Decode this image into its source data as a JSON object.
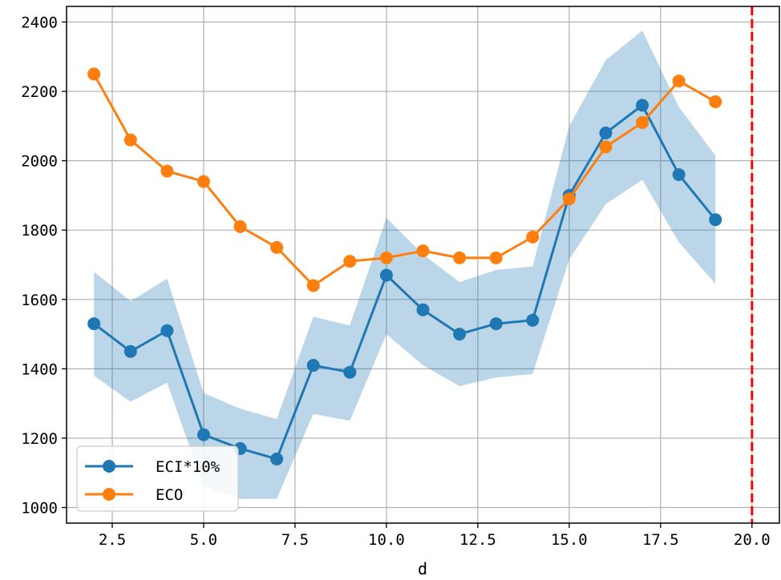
{
  "chart_data": {
    "type": "line",
    "title": "",
    "xlabel": "d",
    "ylabel": "",
    "xlim": [
      1.25,
      20.75
    ],
    "ylim": [
      955,
      2445
    ],
    "xticks": [
      2.5,
      5.0,
      7.5,
      10.0,
      12.5,
      15.0,
      17.5,
      20.0
    ],
    "xtick_labels": [
      "2.5",
      "5.0",
      "7.5",
      "10.0",
      "12.5",
      "15.0",
      "17.5",
      "20.0"
    ],
    "yticks": [
      1000,
      1200,
      1400,
      1600,
      1800,
      2000,
      2200,
      2400
    ],
    "ytick_labels": [
      "1000",
      "1200",
      "1400",
      "1600",
      "1800",
      "2000",
      "2200",
      "2400"
    ],
    "grid": true,
    "legend_position": "lower-left",
    "x": [
      2,
      3,
      4,
      5,
      6,
      7,
      8,
      9,
      10,
      11,
      12,
      13,
      14,
      15,
      16,
      17,
      18,
      19
    ],
    "series": [
      {
        "name": "ECI*10%",
        "color": "#1f77b4",
        "values": [
          1530,
          1450,
          1510,
          1210,
          1170,
          1140,
          1410,
          1390,
          1670,
          1570,
          1500,
          1530,
          1540,
          1900,
          2080,
          2160,
          1960,
          1830
        ],
        "band_lower": [
          1380,
          1305,
          1360,
          1060,
          1025,
          1025,
          1270,
          1250,
          1500,
          1410,
          1350,
          1375,
          1385,
          1715,
          1875,
          1945,
          1765,
          1645
        ],
        "band_upper": [
          1680,
          1595,
          1660,
          1330,
          1285,
          1255,
          1550,
          1525,
          1835,
          1730,
          1650,
          1685,
          1695,
          2100,
          2290,
          2375,
          2155,
          2015
        ],
        "band_color": "#1f77b4"
      },
      {
        "name": "ECO",
        "color": "#ff7f0e",
        "values": [
          2250,
          2060,
          1970,
          1940,
          1810,
          1750,
          1640,
          1710,
          1720,
          1740,
          1720,
          1720,
          1780,
          1890,
          2040,
          2110,
          2230,
          2170
        ]
      }
    ],
    "reference_line": {
      "x": 20,
      "color": "#ff0000",
      "style": "dashed"
    }
  }
}
